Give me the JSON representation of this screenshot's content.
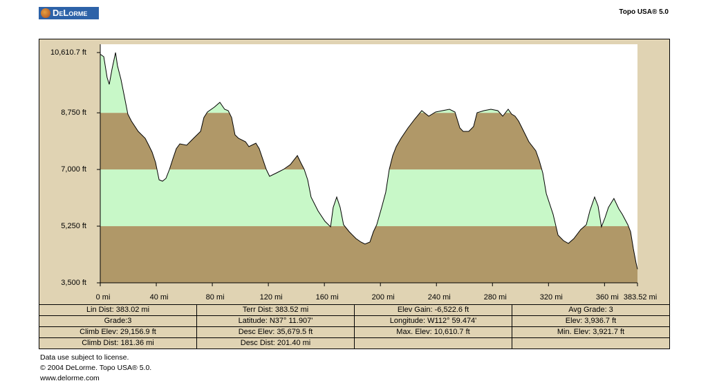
{
  "header": {
    "logo": "DeLorme",
    "product": "Topo USA® 5.0"
  },
  "chart_data": {
    "type": "area-profile",
    "x": [
      0,
      2.5,
      4.9,
      6.4,
      8.4,
      10.9,
      12.3,
      14.8,
      17.3,
      19.7,
      22.2,
      27.1,
      32.1,
      34.6,
      37.0,
      39.5,
      42.0,
      44.4,
      46.9,
      49.4,
      51.8,
      54.3,
      56.8,
      61.7,
      66.6,
      71.6,
      74.0,
      76.5,
      81.4,
      85.4,
      88.8,
      91.3,
      93.8,
      96.2,
      98.7,
      103.7,
      106.1,
      111.1,
      113.5,
      118.5,
      120.9,
      125.9,
      130.8,
      135.7,
      140.7,
      143.1,
      145.6,
      148.1,
      150.5,
      155.5,
      160.4,
      164.4,
      166.3,
      168.8,
      171.3,
      173.7,
      177.7,
      182.6,
      186.1,
      189.0,
      192.5,
      195.0,
      197.4,
      200.9,
      203.8,
      206.3,
      208.8,
      211.3,
      214.7,
      219.7,
      224.6,
      229.5,
      234.5,
      239.4,
      244.3,
      249.3,
      253.2,
      256.7,
      259.1,
      263.1,
      266.5,
      269.0,
      273.9,
      278.9,
      283.8,
      287.3,
      291.2,
      293.7,
      296.1,
      298.6,
      301.1,
      306.0,
      310.9,
      313.4,
      315.9,
      318.4,
      323.3,
      326.8,
      330.7,
      334.2,
      338.1,
      343.0,
      347.0,
      349.5,
      352.9,
      355.4,
      357.8,
      360.3,
      362.8,
      366.7,
      370.2,
      372.7,
      376.6,
      378.6,
      380.6,
      382.5,
      383.52
    ],
    "values": [
      10560,
      10483,
      9842,
      9629,
      10098,
      10610.7,
      10205,
      9778,
      9244,
      8710,
      8497,
      8177,
      7963,
      7749,
      7536,
      7216,
      6682,
      6639,
      6724,
      7002,
      7322,
      7643,
      7792,
      7749,
      7963,
      8177,
      8604,
      8774,
      8924,
      9073,
      8860,
      8817,
      8604,
      8070,
      7963,
      7856,
      7707,
      7814,
      7643,
      7002,
      6789,
      6895,
      7002,
      7152,
      7429,
      7216,
      7002,
      6682,
      6148,
      5721,
      5400,
      5230,
      5828,
      6148,
      5828,
      5294,
      5080,
      4867,
      4760,
      4696,
      4760,
      5080,
      5294,
      5828,
      6297,
      7002,
      7429,
      7707,
      7963,
      8283,
      8561,
      8817,
      8646,
      8774,
      8817,
      8860,
      8774,
      8283,
      8177,
      8177,
      8326,
      8753,
      8817,
      8860,
      8817,
      8646,
      8860,
      8710,
      8646,
      8497,
      8283,
      7856,
      7579,
      7280,
      6895,
      6255,
      5614,
      4973,
      4803,
      4717,
      4867,
      5144,
      5294,
      5721,
      6148,
      5870,
      5230,
      5507,
      5828,
      6105,
      5785,
      5614,
      5294,
      5080,
      4546,
      4119,
      3921.7
    ],
    "xlim": [
      0,
      383.52
    ],
    "ylim": [
      3500,
      10867
    ],
    "xticks": [
      {
        "value": 0,
        "label": "0 mi"
      },
      {
        "value": 40,
        "label": "40 mi"
      },
      {
        "value": 80,
        "label": "80 mi"
      },
      {
        "value": 120,
        "label": "120 mi"
      },
      {
        "value": 160,
        "label": "160 mi"
      },
      {
        "value": 200,
        "label": "200 mi"
      },
      {
        "value": 240,
        "label": "240 mi"
      },
      {
        "value": 280,
        "label": "280 mi"
      },
      {
        "value": 320,
        "label": "320 mi"
      },
      {
        "value": 360,
        "label": "360 mi"
      },
      {
        "value": 383.52,
        "label": "383.52 mi"
      }
    ],
    "yticks": [
      {
        "value": 3500,
        "label": "3,500 ft"
      },
      {
        "value": 5250,
        "label": "5,250 ft"
      },
      {
        "value": 7000,
        "label": "7,000 ft"
      },
      {
        "value": 8750,
        "label": "8,750 ft"
      },
      {
        "value": 10610.7,
        "label": "10,610.7 ft"
      }
    ],
    "band_colors": [
      "#b09868",
      "#c8f8c8"
    ],
    "line_color": "#000000"
  },
  "table": {
    "rows": [
      [
        "Lin Dist: 383.02 mi",
        "Terr Dist: 383.52 mi",
        "Elev Gain: -6,522.6 ft",
        "Avg Grade: 3"
      ],
      [
        "Grade:3",
        "Latitude: N37° 11.907'",
        "Longitude: W112° 59.474'",
        "Elev: 3,936.7 ft"
      ],
      [
        "Climb Elev: 29,156.9 ft",
        "Desc Elev: 35,679.5 ft",
        "Max. Elev: 10,610.7 ft",
        "Min. Elev: 3,921.7 ft"
      ],
      [
        "Climb Dist: 181.36 mi",
        "Desc Dist: 201.40 mi"
      ]
    ]
  },
  "footer": [
    "Data use subject to license.",
    "© 2004 DeLorme. Topo USA® 5.0.",
    "www.delorme.com"
  ]
}
